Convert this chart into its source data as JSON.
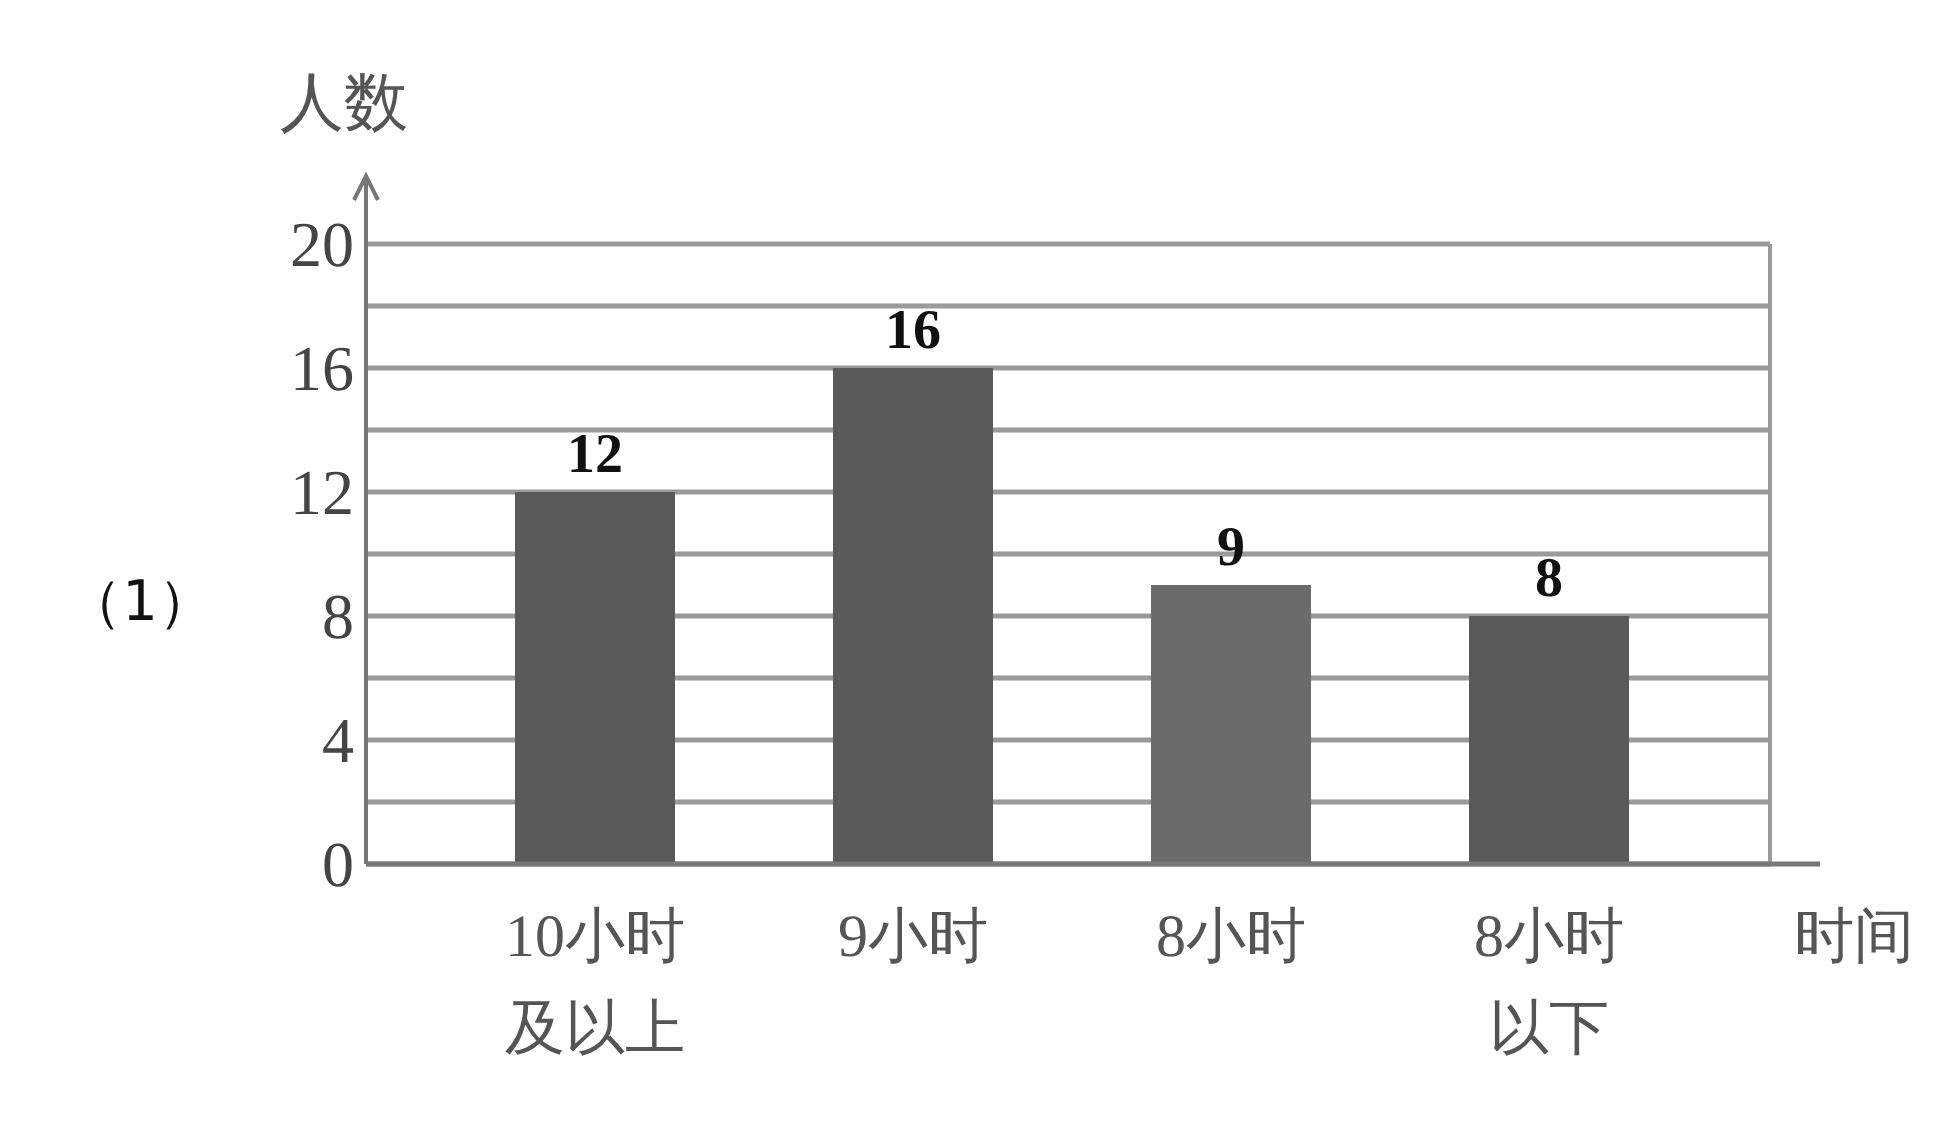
{
  "chart_data": {
    "type": "bar",
    "ylabel": "人数",
    "xlabel": "时间",
    "categories": [
      "10小时及以上",
      "9小时",
      "8小时",
      "8小时以下"
    ],
    "values": [
      12,
      16,
      9,
      8
    ],
    "colors": [
      "#595959",
      "#595959",
      "#6b6b6b",
      "#595959"
    ],
    "ylim": [
      0,
      20
    ],
    "yticks": [
      0,
      {
        "value": 2,
        "label": null
      },
      4,
      {
        "value": 6,
        "label": null
      },
      8,
      {
        "value": 10,
        "label": null
      },
      12,
      {
        "value": 14,
        "label": null
      },
      16,
      {
        "value": 18,
        "label": null
      },
      20
    ],
    "grid": "y",
    "data_labels": true,
    "annotations": [
      "（1）"
    ]
  }
}
